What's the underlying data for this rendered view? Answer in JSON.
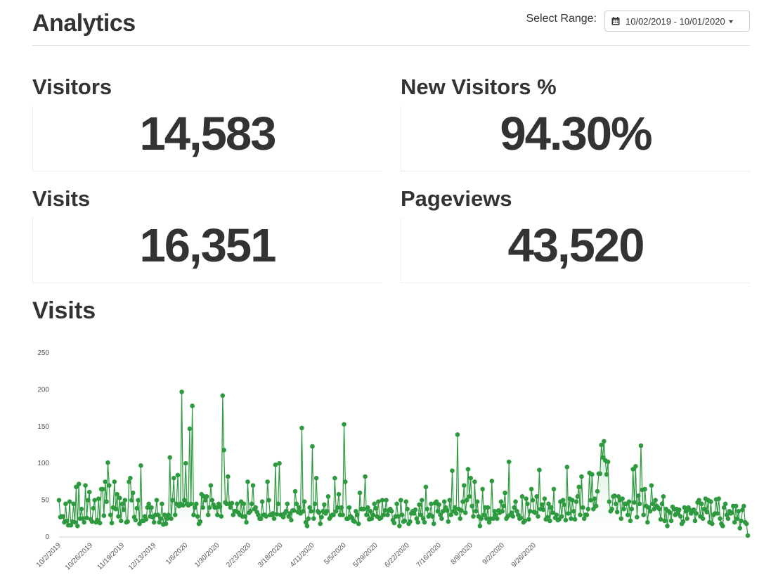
{
  "header": {
    "title": "Analytics",
    "range_label": "Select Range:",
    "range_value": "10/02/2019 - 10/01/2020",
    "calendar_icon": "calendar-icon",
    "caret_icon": "caret-down-icon"
  },
  "stats": [
    {
      "label": "Visitors",
      "value": "14,583"
    },
    {
      "label": "New Visitors %",
      "value": "94.30%"
    },
    {
      "label": "Visits",
      "value": "16,351"
    },
    {
      "label": "Pageviews",
      "value": "43,520"
    }
  ],
  "chart_title": "Visits",
  "colors": {
    "line": "#2e9a3f",
    "fill_top": "#8fcf99",
    "fill_bottom": "#ffffff",
    "text": "#333333",
    "axis_text": "#555555"
  },
  "chart_data": {
    "type": "area",
    "title": "Visits",
    "xlabel": "",
    "ylabel": "",
    "ylim": [
      0,
      250
    ],
    "y_ticks": [
      0,
      50,
      100,
      150,
      200,
      250
    ],
    "x_ticks": [
      "10/2/2019",
      "10/26/2019",
      "11/19/2019",
      "12/13/2019",
      "1/6/2020",
      "1/30/2020",
      "2/23/2020",
      "3/18/2020",
      "4/11/2020",
      "5/5/2020",
      "5/29/2020",
      "6/22/2020",
      "7/16/2020",
      "8/9/2020",
      "9/2/2020",
      "9/26/2020"
    ],
    "grid": false,
    "start_date": "10/2/2019",
    "end_date": "10/1/2020",
    "values": [
      50,
      27,
      28,
      28,
      20,
      45,
      22,
      16,
      48,
      16,
      21,
      45,
      20,
      68,
      15,
      72,
      25,
      38,
      25,
      20,
      70,
      26,
      50,
      61,
      24,
      21,
      39,
      50,
      20,
      23,
      52,
      19,
      65,
      65,
      29,
      75,
      48,
      101,
      70,
      30,
      19,
      40,
      75,
      38,
      58,
      28,
      53,
      22,
      45,
      37,
      50,
      20,
      21,
      75,
      80,
      50,
      60,
      27,
      23,
      39,
      50,
      18,
      97,
      22,
      22,
      28,
      24,
      40,
      45,
      28,
      40,
      27,
      20,
      30,
      50,
      30,
      20,
      25,
      45,
      17,
      30,
      18,
      25,
      30,
      108,
      25,
      50,
      80,
      30,
      45,
      84,
      42,
      45,
      197,
      43,
      50,
      100,
      45,
      43,
      147,
      45,
      178,
      30,
      40,
      45,
      28,
      18,
      21,
      58,
      40,
      55,
      50,
      55,
      30,
      40,
      70,
      50,
      44,
      40,
      40,
      30,
      45,
      41,
      28,
      192,
      118,
      47,
      45,
      82,
      45,
      40,
      46,
      30,
      35,
      35,
      45,
      33,
      30,
      48,
      28,
      45,
      28,
      20,
      75,
      33,
      35,
      45,
      70,
      38,
      40,
      34,
      30,
      25,
      25,
      48,
      30,
      30,
      28,
      75,
      50,
      30,
      30,
      32,
      25,
      98,
      31,
      45,
      100,
      30,
      30,
      27,
      32,
      35,
      45,
      28,
      32,
      23,
      36,
      36,
      62,
      45,
      34,
      40,
      32,
      148,
      35,
      48,
      20,
      15,
      25,
      40,
      35,
      123,
      25,
      45,
      80,
      35,
      33,
      18,
      27,
      35,
      44,
      32,
      35,
      55,
      25,
      28,
      30,
      30,
      80,
      35,
      40,
      58,
      30,
      40,
      30,
      153,
      75,
      25,
      25,
      40,
      28,
      26,
      22,
      21,
      35,
      30,
      18,
      60,
      38,
      38,
      38,
      82,
      30,
      40,
      24,
      35,
      25,
      30,
      45,
      39,
      28,
      48,
      25,
      26,
      50,
      30,
      36,
      50,
      30,
      36,
      38,
      35,
      23,
      19,
      28,
      45,
      28,
      15,
      50,
      30,
      21,
      22,
      48,
      38,
      18,
      21,
      32,
      35,
      32,
      37,
      25,
      20,
      44,
      30,
      50,
      25,
      20,
      68,
      38,
      28,
      30,
      45,
      28,
      18,
      46,
      48,
      35,
      44,
      30,
      25,
      35,
      48,
      40,
      36,
      21,
      50,
      30,
      90,
      35,
      40,
      32,
      139,
      38,
      25,
      36,
      48,
      70,
      33,
      50,
      92,
      55,
      80,
      42,
      28,
      75,
      35,
      48,
      28,
      15,
      25,
      65,
      30,
      40,
      25,
      40,
      20,
      25,
      76,
      25,
      35,
      30,
      25,
      36,
      33,
      48,
      35,
      42,
      60,
      25,
      28,
      102,
      30,
      33,
      28,
      40,
      48,
      35,
      30,
      25,
      26,
      55,
      20,
      22,
      52,
      45,
      24,
      35,
      65,
      50,
      34,
      33,
      55,
      28,
      91,
      38,
      44,
      37,
      52,
      24,
      27,
      45,
      22,
      40,
      33,
      65,
      26,
      30,
      23,
      24,
      48,
      28,
      50,
      44,
      23,
      95,
      32,
      52,
      25,
      50,
      35,
      24,
      48,
      55,
      68,
      30,
      82,
      40,
      25,
      30,
      30,
      38,
      87,
      50,
      85,
      38,
      52,
      42,
      62,
      86,
      86,
      125,
      108,
      130,
      104,
      85,
      102,
      48,
      35,
      38,
      55,
      56,
      45,
      34,
      55,
      50,
      25,
      52,
      38,
      45,
      45,
      30,
      48,
      22,
      38,
      92,
      47,
      96,
      27,
      56,
      45,
      124,
      64,
      30,
      65,
      42,
      20,
      40,
      35,
      70,
      45,
      38,
      50,
      42,
      40,
      38,
      24,
      45,
      55,
      22,
      38,
      15,
      35,
      33,
      22,
      41,
      38,
      30,
      38,
      32,
      37,
      28,
      18,
      21,
      40,
      35,
      25,
      40,
      37,
      32,
      35,
      37,
      22,
      32,
      47,
      50,
      28,
      45,
      25,
      38,
      52,
      34,
      50,
      20,
      48,
      18,
      30,
      32,
      51,
      32,
      52,
      25,
      18,
      15,
      40,
      45,
      30,
      25,
      35,
      32,
      33,
      42,
      20,
      42,
      25,
      35,
      12,
      22,
      37,
      42,
      20,
      18,
      2
    ]
  }
}
